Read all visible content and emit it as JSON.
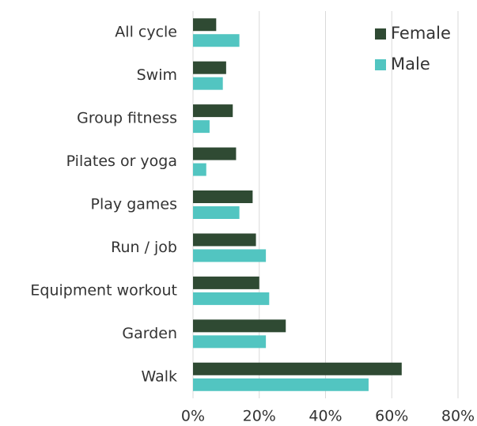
{
  "chart_data": {
    "type": "bar",
    "orientation": "horizontal",
    "categories": [
      "All cycle",
      "Swim",
      "Group fitness",
      "Pilates or yoga",
      "Play games",
      "Run / job",
      "Equipment workout",
      "Garden",
      "Walk"
    ],
    "series": [
      {
        "name": "Female",
        "color": "#2f4a33",
        "values": [
          7,
          10,
          12,
          13,
          18,
          19,
          20,
          28,
          63
        ]
      },
      {
        "name": "Male",
        "color": "#52c5c1",
        "values": [
          14,
          9,
          5,
          4,
          14,
          22,
          23,
          22,
          53
        ]
      }
    ],
    "xlim": [
      0,
      80
    ],
    "xticks": [
      {
        "value": 0,
        "label": "0%"
      },
      {
        "value": 20,
        "label": "20%"
      },
      {
        "value": 40,
        "label": "40%"
      },
      {
        "value": 60,
        "label": "60%"
      },
      {
        "value": 80,
        "label": "80%"
      }
    ],
    "grid": true,
    "legend": "top-right"
  }
}
